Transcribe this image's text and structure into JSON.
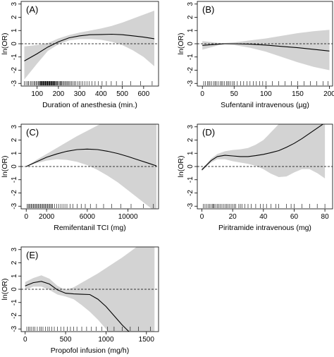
{
  "chart_data": [
    {
      "type": "line",
      "panel_label": "(A)",
      "xlabel": "Duration of anesthesia (min.)",
      "ylabel": "ln(OR)",
      "xlim": [
        25,
        670
      ],
      "ylim": [
        -3.2,
        3.2
      ],
      "xticks": [
        100,
        200,
        300,
        400,
        500,
        600
      ],
      "yticks": [
        -3,
        -2,
        -1,
        0,
        1,
        2,
        3
      ],
      "reference_line": 0,
      "x": [
        40,
        100,
        150,
        200,
        250,
        300,
        350,
        400,
        450,
        500,
        550,
        600,
        650
      ],
      "estimate": [
        -1.3,
        -0.75,
        -0.25,
        0.15,
        0.45,
        0.6,
        0.68,
        0.7,
        0.72,
        0.68,
        0.6,
        0.5,
        0.38
      ],
      "ci_lower": [
        -2.7,
        -1.5,
        -0.55,
        -0.05,
        0.25,
        0.35,
        0.35,
        0.3,
        0.15,
        -0.1,
        -0.5,
        -1.0,
        -1.7
      ],
      "ci_upper": [
        -0.2,
        -0.1,
        0.05,
        0.4,
        0.65,
        0.85,
        1.0,
        1.15,
        1.35,
        1.6,
        1.9,
        2.2,
        2.5
      ],
      "rug": [
        40,
        48,
        55,
        60,
        68,
        72,
        80,
        85,
        90,
        95,
        100,
        105,
        108,
        112,
        115,
        118,
        120,
        122,
        125,
        128,
        130,
        132,
        135,
        138,
        140,
        142,
        145,
        148,
        150,
        152,
        155,
        158,
        160,
        162,
        165,
        168,
        170,
        172,
        175,
        178,
        180,
        183,
        186,
        190,
        193,
        196,
        200,
        204,
        208,
        212,
        216,
        220,
        225,
        230,
        235,
        240,
        245,
        250,
        256,
        262,
        268,
        275,
        282,
        290,
        298,
        306,
        315,
        325,
        335,
        345,
        358,
        372,
        388,
        405,
        425,
        448,
        472,
        500,
        540,
        585,
        640
      ]
    },
    {
      "type": "line",
      "panel_label": "(B)",
      "xlabel": "Sufentanil intravenous (µg)",
      "ylabel": "ln(OR)",
      "xlim": [
        -8,
        205
      ],
      "ylim": [
        -3.2,
        3.2
      ],
      "xticks": [
        0,
        50,
        100,
        150,
        200
      ],
      "yticks": [
        -3,
        -2,
        -1,
        0,
        1,
        2,
        3
      ],
      "reference_line": 0,
      "x": [
        0,
        25,
        35,
        50,
        75,
        100,
        125,
        150,
        175,
        200
      ],
      "estimate": [
        -0.12,
        -0.03,
        0.0,
        0.0,
        -0.03,
        -0.1,
        -0.2,
        -0.3,
        -0.42,
        -0.55
      ],
      "ci_lower": [
        -0.45,
        -0.12,
        -0.05,
        -0.1,
        -0.3,
        -0.6,
        -1.0,
        -1.4,
        -1.75,
        -2.0
      ],
      "ci_upper": [
        0.2,
        0.07,
        0.05,
        0.1,
        0.25,
        0.4,
        0.6,
        0.8,
        0.95,
        1.05
      ],
      "rug": [
        2,
        5,
        8,
        10,
        12,
        15,
        18,
        20,
        22,
        25,
        28,
        30,
        32,
        35,
        38,
        40,
        42,
        45,
        48,
        50,
        55,
        60,
        65,
        70,
        75,
        80,
        85,
        90,
        95,
        100,
        110,
        120,
        130,
        140,
        150,
        160,
        170,
        180,
        190,
        198
      ]
    },
    {
      "type": "line",
      "panel_label": "(C)",
      "xlabel": "Remifentanil TCI (mg)",
      "ylabel": "ln(OR)",
      "xlim": [
        -500,
        13000
      ],
      "ylim": [
        -3.2,
        3.2
      ],
      "xticks": [
        0,
        2000,
        6000,
        10000
      ],
      "yticks": [
        -3,
        -2,
        -1,
        0,
        1,
        2,
        3
      ],
      "reference_line": 0,
      "x": [
        0,
        1000,
        2000,
        3000,
        4000,
        5000,
        6000,
        7000,
        8000,
        9000,
        10000,
        11000,
        12000,
        12800
      ],
      "estimate": [
        0.0,
        0.35,
        0.7,
        0.95,
        1.15,
        1.28,
        1.32,
        1.28,
        1.15,
        0.98,
        0.75,
        0.5,
        0.25,
        0.05
      ],
      "ci_lower": [
        0.0,
        0.25,
        0.45,
        0.55,
        0.5,
        0.35,
        0.1,
        -0.25,
        -0.7,
        -1.2,
        -1.8,
        -2.4,
        -3.0,
        -3.5
      ],
      "ci_upper": [
        0.0,
        0.5,
        0.95,
        1.4,
        1.85,
        2.3,
        2.7,
        3.1,
        3.5,
        3.8,
        4.0,
        4.0,
        4.0,
        4.0
      ],
      "rug": [
        100,
        200,
        300,
        400,
        500,
        600,
        700,
        800,
        900,
        1000,
        1100,
        1200,
        1300,
        1400,
        1500,
        1600,
        1700,
        1800,
        1900,
        2000,
        2100,
        2200,
        2300,
        2400,
        2500,
        2600,
        2800,
        3000,
        3200,
        3400,
        3600,
        3800,
        4000,
        4300,
        4600,
        5000,
        5400,
        5800,
        6300,
        6900,
        7600,
        8400,
        9300,
        10300,
        11500,
        12500
      ]
    },
    {
      "type": "line",
      "panel_label": "(D)",
      "xlabel": "Piritramide intravenous (mg)",
      "ylabel": "ln(OR)",
      "xlim": [
        -3,
        85
      ],
      "ylim": [
        -3.2,
        3.2
      ],
      "xticks": [
        0,
        20,
        40,
        60,
        80
      ],
      "yticks": [
        -3,
        -2,
        -1,
        0,
        1,
        2,
        3
      ],
      "reference_line": 0,
      "x": [
        0,
        3,
        6,
        10,
        15,
        20,
        25,
        30,
        35,
        40,
        45,
        50,
        55,
        60,
        65,
        70,
        75,
        80
      ],
      "estimate": [
        -0.25,
        0.1,
        0.45,
        0.75,
        0.85,
        0.8,
        0.75,
        0.75,
        0.82,
        0.92,
        1.05,
        1.2,
        1.45,
        1.75,
        2.1,
        2.5,
        2.9,
        3.3
      ],
      "ci_lower": [
        -0.35,
        0.0,
        0.3,
        0.55,
        0.55,
        0.4,
        0.3,
        0.2,
        0.05,
        -0.2,
        -0.55,
        -0.8,
        -0.75,
        -0.45,
        -0.2,
        -0.2,
        -0.5,
        -0.9
      ],
      "ci_upper": [
        -0.15,
        0.2,
        0.6,
        0.95,
        1.15,
        1.25,
        1.3,
        1.4,
        1.65,
        2.0,
        2.6,
        3.2,
        3.7,
        4.2,
        4.6,
        5.0,
        5.0,
        5.0
      ],
      "rug": [
        1,
        2,
        3,
        4,
        5,
        6,
        7,
        7.5,
        8,
        9,
        10,
        11,
        12,
        13,
        14,
        15,
        16,
        17,
        18,
        19,
        20,
        21,
        22,
        24,
        25,
        26,
        28,
        30,
        32,
        35,
        38,
        40,
        42,
        45,
        48,
        50,
        55,
        58,
        60,
        65,
        70,
        75,
        80
      ]
    },
    {
      "type": "line",
      "panel_label": "(E)",
      "xlabel": "Propofol infusion (mg/h)",
      "ylabel": "ln(OR)",
      "xlim": [
        -50,
        1650
      ],
      "ylim": [
        -3.2,
        3.2
      ],
      "xticks": [
        0,
        500,
        1000,
        1500
      ],
      "yticks": [
        -3,
        -2,
        -1,
        0,
        1,
        2,
        3
      ],
      "reference_line": 0,
      "x": [
        0,
        100,
        200,
        300,
        400,
        500,
        600,
        700,
        800,
        900,
        1000,
        1100,
        1200,
        1300,
        1400,
        1500,
        1600
      ],
      "estimate": [
        0.25,
        0.5,
        0.6,
        0.4,
        -0.05,
        -0.3,
        -0.35,
        -0.38,
        -0.4,
        -0.75,
        -1.3,
        -2.0,
        -2.7,
        -3.3,
        -3.9,
        -4.5,
        -5.0
      ],
      "ci_lower": [
        -0.05,
        0.2,
        0.2,
        -0.05,
        -0.4,
        -0.55,
        -0.75,
        -1.2,
        -1.7,
        -2.3,
        -3.0,
        -3.8,
        -4.6,
        -5.0,
        -5.0,
        -5.0,
        -5.0
      ],
      "ci_upper": [
        0.55,
        0.85,
        1.05,
        0.8,
        0.25,
        -0.05,
        0.15,
        0.5,
        0.85,
        1.2,
        1.6,
        2.0,
        2.4,
        2.85,
        3.3,
        3.8,
        4.2
      ],
      "rug": [
        20,
        40,
        60,
        80,
        100,
        120,
        150,
        180,
        200,
        220,
        250,
        280,
        300,
        330,
        360,
        400,
        440,
        480,
        520,
        560,
        600,
        640,
        700,
        760,
        820,
        880,
        950,
        1020,
        1100,
        1200,
        1300,
        1400,
        1550
      ]
    }
  ]
}
